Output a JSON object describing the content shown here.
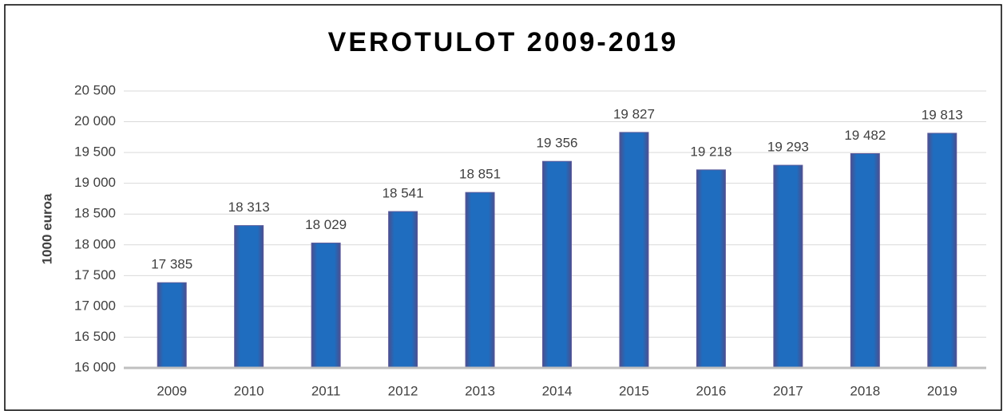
{
  "chart_data": {
    "type": "bar",
    "title": "VEROTULOT 2009-2019",
    "y_label": "1000 euroa",
    "categories": [
      "2009",
      "2010",
      "2011",
      "2012",
      "2013",
      "2014",
      "2015",
      "2016",
      "2017",
      "2018",
      "2019"
    ],
    "values": [
      17385,
      18313,
      18029,
      18541,
      18851,
      19356,
      19827,
      19218,
      19293,
      19482,
      19813
    ],
    "value_labels": [
      "17 385",
      "18 313",
      "18 029",
      "18 541",
      "18 851",
      "19 356",
      "19 827",
      "19 218",
      "19 293",
      "19 482",
      "19 813"
    ],
    "color": "#1f6dbf",
    "ylim": [
      16000,
      20500
    ],
    "yticks": [
      {
        "value": 16000,
        "label": "16 000"
      },
      {
        "value": 16500,
        "label": "16 500"
      },
      {
        "value": 17000,
        "label": "17 000"
      },
      {
        "value": 17500,
        "label": "17 500"
      },
      {
        "value": 18000,
        "label": "18 000"
      },
      {
        "value": 18500,
        "label": "18 500"
      },
      {
        "value": 19000,
        "label": "19 000"
      },
      {
        "value": 19500,
        "label": "19 500"
      },
      {
        "value": 20000,
        "label": "20 000"
      },
      {
        "value": 20500,
        "label": "20 500"
      }
    ],
    "grid": true
  }
}
